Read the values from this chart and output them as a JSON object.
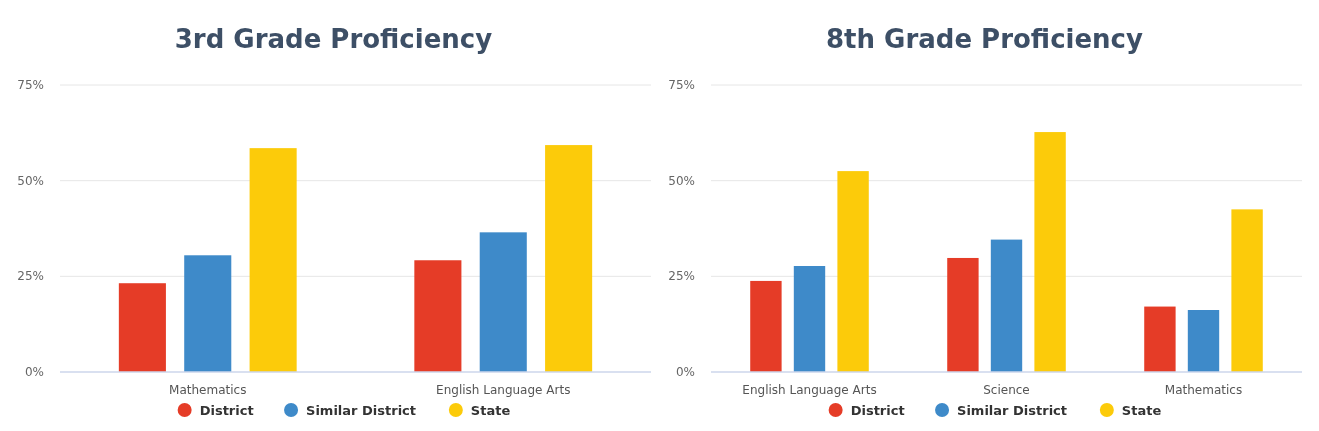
{
  "chart_data": [
    {
      "type": "bar",
      "title": "3rd Grade Proficiency",
      "categories": [
        "Mathematics",
        "English Language Arts"
      ],
      "series": [
        {
          "name": "District",
          "color": "#e53c27",
          "values": [
            23.2,
            29.2
          ]
        },
        {
          "name": "Similar District",
          "color": "#3e8ac9",
          "values": [
            30.5,
            36.5
          ]
        },
        {
          "name": "State",
          "color": "#fccb0a",
          "values": [
            58.5,
            59.3
          ]
        }
      ],
      "ylim": [
        0,
        75
      ],
      "yticks": [
        {
          "value": 0,
          "label": "0%"
        },
        {
          "value": 25,
          "label": "25%"
        },
        {
          "value": 50,
          "label": "50%"
        },
        {
          "value": 75,
          "label": "75%"
        }
      ],
      "grid": "y",
      "legend": "bottom"
    },
    {
      "type": "bar",
      "title": "8th Grade Proficiency",
      "categories": [
        "English Language Arts",
        "Science",
        "Mathematics"
      ],
      "series": [
        {
          "name": "District",
          "color": "#e53c27",
          "values": [
            23.8,
            29.8,
            17.1
          ]
        },
        {
          "name": "Similar District",
          "color": "#3e8ac9",
          "values": [
            27.7,
            34.6,
            16.2
          ]
        },
        {
          "name": "State",
          "color": "#fccb0a",
          "values": [
            52.5,
            62.7,
            42.5
          ]
        }
      ],
      "ylim": [
        0,
        75
      ],
      "yticks": [
        {
          "value": 0,
          "label": "0%"
        },
        {
          "value": 25,
          "label": "25%"
        },
        {
          "value": 50,
          "label": "50%"
        },
        {
          "value": 75,
          "label": "75%"
        }
      ],
      "grid": "y",
      "legend": "bottom"
    }
  ]
}
